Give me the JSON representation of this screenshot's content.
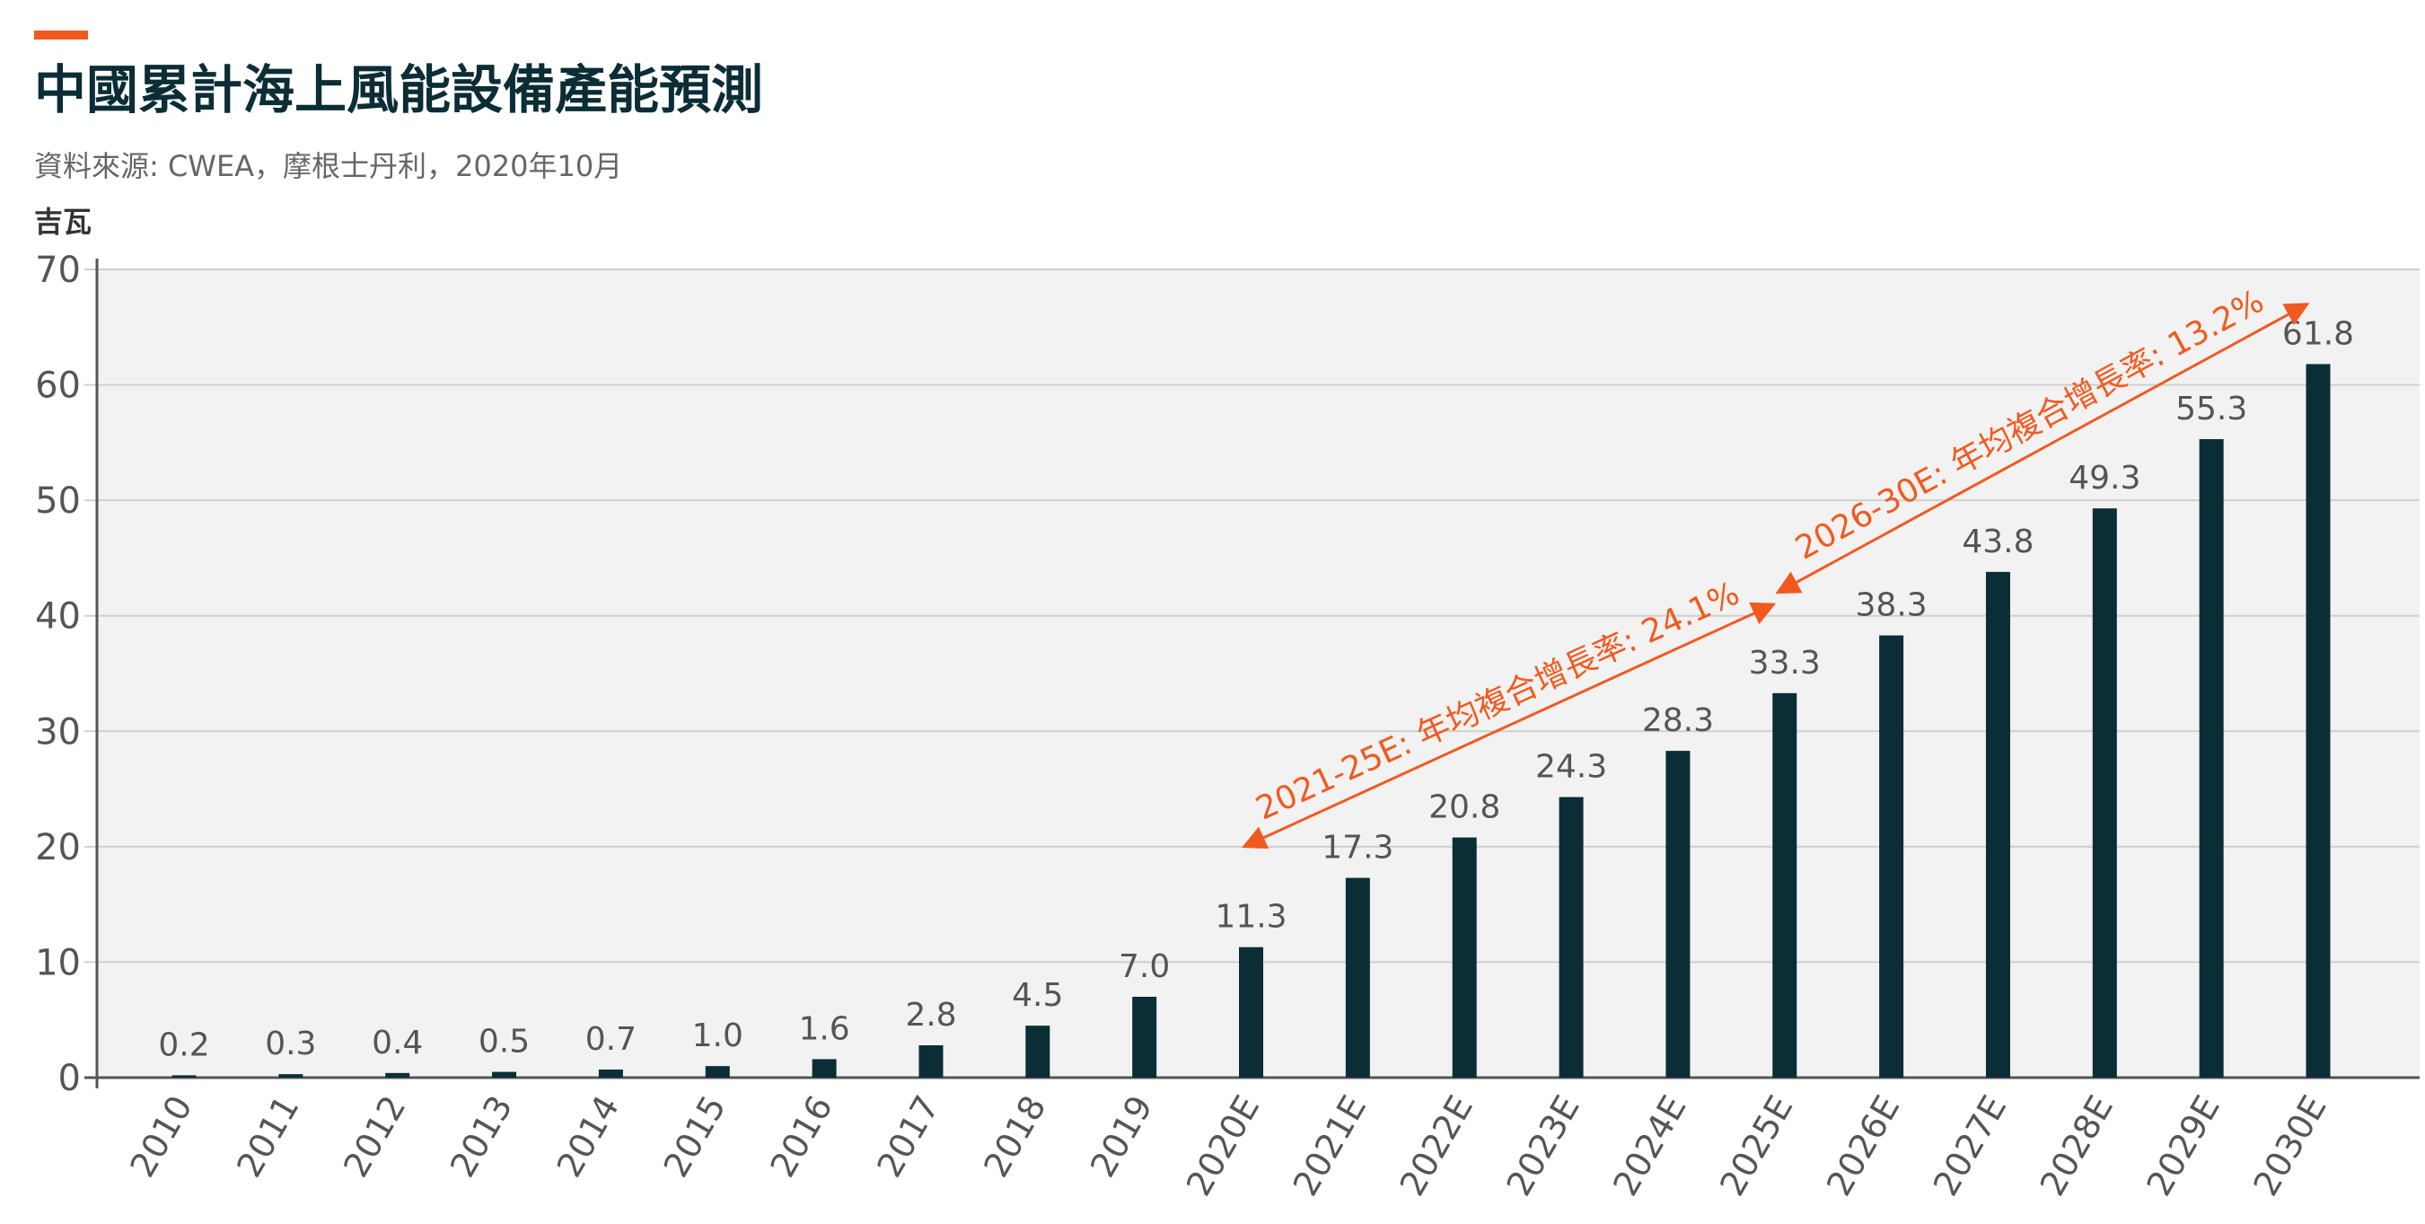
{
  "header": {
    "title": "中國累計海上風能設備產能預測",
    "subtitle": "資料來源: CWEA，摩根士丹利，2020年10月",
    "unit": "吉瓦"
  },
  "colors": {
    "accent": "#f15a1f",
    "bar": "#0b2d36",
    "plot_bg": "#f2f2f2",
    "grid": "#cfcfcf",
    "axis_text": "#555555",
    "label_text": "#555555"
  },
  "annotations": [
    {
      "text": "2021-25E: 年均複合增長率: 24.1%",
      "from": [
        "2020E",
        20
      ],
      "to": [
        "2025E",
        41
      ]
    },
    {
      "text": "2026-30E: 年均複合增長率: 13.2%",
      "from": [
        "2025E",
        42
      ],
      "to": [
        "2030E",
        67
      ]
    }
  ],
  "chart_data": {
    "type": "bar",
    "title": "中國累計海上風能設備產能預測",
    "ylabel": "吉瓦",
    "xlabel": "",
    "ylim": [
      0,
      70
    ],
    "yticks": [
      0,
      10,
      20,
      30,
      40,
      50,
      60,
      70
    ],
    "grid": true,
    "categories": [
      "2010",
      "2011",
      "2012",
      "2013",
      "2014",
      "2015",
      "2016",
      "2017",
      "2018",
      "2019",
      "2020E",
      "2021E",
      "2022E",
      "2023E",
      "2024E",
      "2025E",
      "2026E",
      "2027E",
      "2028E",
      "2029E",
      "2030E"
    ],
    "values": [
      0.2,
      0.3,
      0.4,
      0.5,
      0.7,
      1.0,
      1.6,
      2.8,
      4.5,
      7.0,
      11.3,
      17.3,
      20.8,
      24.3,
      28.3,
      33.3,
      38.3,
      43.8,
      49.3,
      55.3,
      61.8
    ],
    "value_labels": [
      "0.2",
      "0.3",
      "0.4",
      "0.5",
      "0.7",
      "1.0",
      "1.6",
      "2.8",
      "4.5",
      "7.0",
      "11.3",
      "17.3",
      "20.8",
      "24.3",
      "28.3",
      "33.3",
      "38.3",
      "43.8",
      "49.3",
      "55.3",
      "61.8"
    ]
  }
}
